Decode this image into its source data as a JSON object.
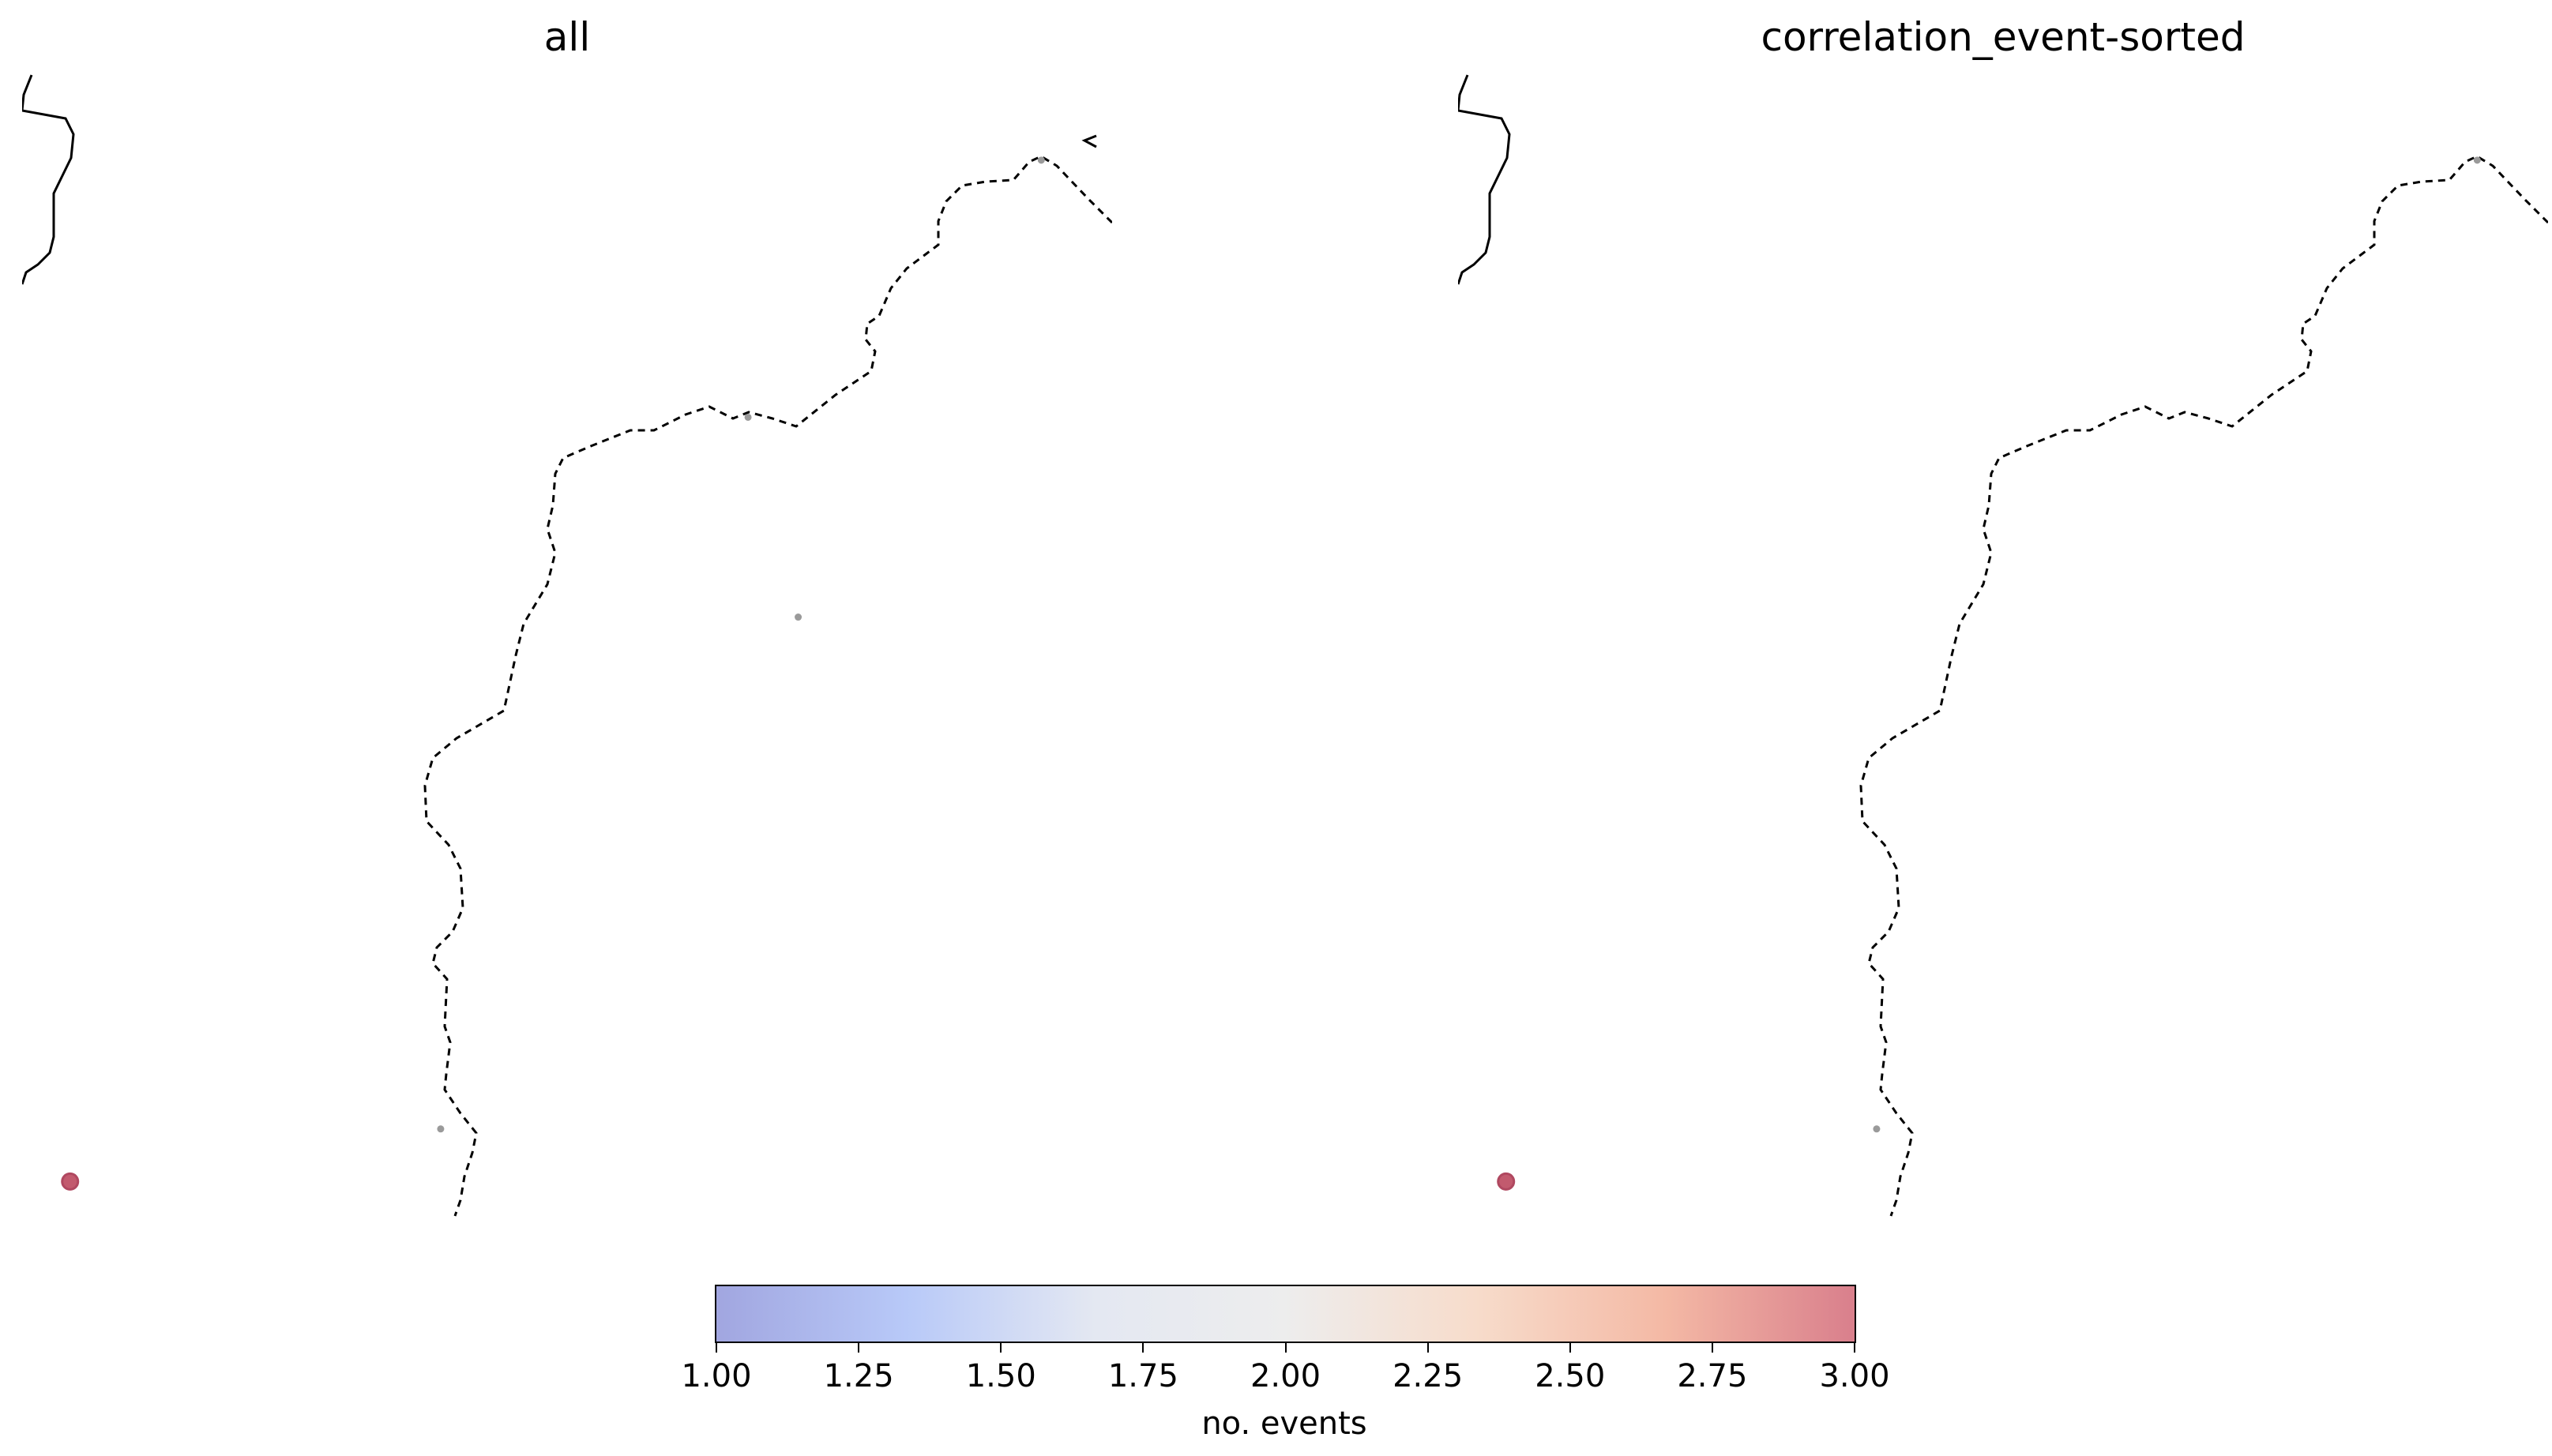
{
  "panels": [
    {
      "title": "all",
      "stations": [
        {
          "lon": 0.935,
          "lat": 0.917,
          "events": 1
        },
        {
          "lon": 0.666,
          "lat": 0.697,
          "events": 1
        },
        {
          "lon": 0.712,
          "lat": 0.526,
          "events": 1
        },
        {
          "lon": 0.384,
          "lat": 0.088,
          "events": 1
        },
        {
          "lon": 0.044,
          "lat": 0.043,
          "events": 3
        }
      ]
    },
    {
      "title": "correlation_event-sorted",
      "stations": [
        {
          "lon": 0.935,
          "lat": 0.917,
          "events": 1
        },
        {
          "lon": 0.384,
          "lat": 0.088,
          "events": 1
        },
        {
          "lon": 0.044,
          "lat": 0.043,
          "events": 3
        }
      ]
    }
  ],
  "colorbar": {
    "label": "no. events",
    "min": 1.0,
    "max": 3.0,
    "ticks": [
      "1.00",
      "1.25",
      "1.50",
      "1.75",
      "2.00",
      "2.25",
      "2.50",
      "2.75",
      "3.00"
    ],
    "colormap": "coolwarm",
    "colors": {
      "low": "#a1a6e0",
      "mid": "#ededed",
      "high": "#d97f8c"
    }
  },
  "colors": {
    "station_low": "#9a9a9a",
    "station_high": "#c25a6e"
  }
}
